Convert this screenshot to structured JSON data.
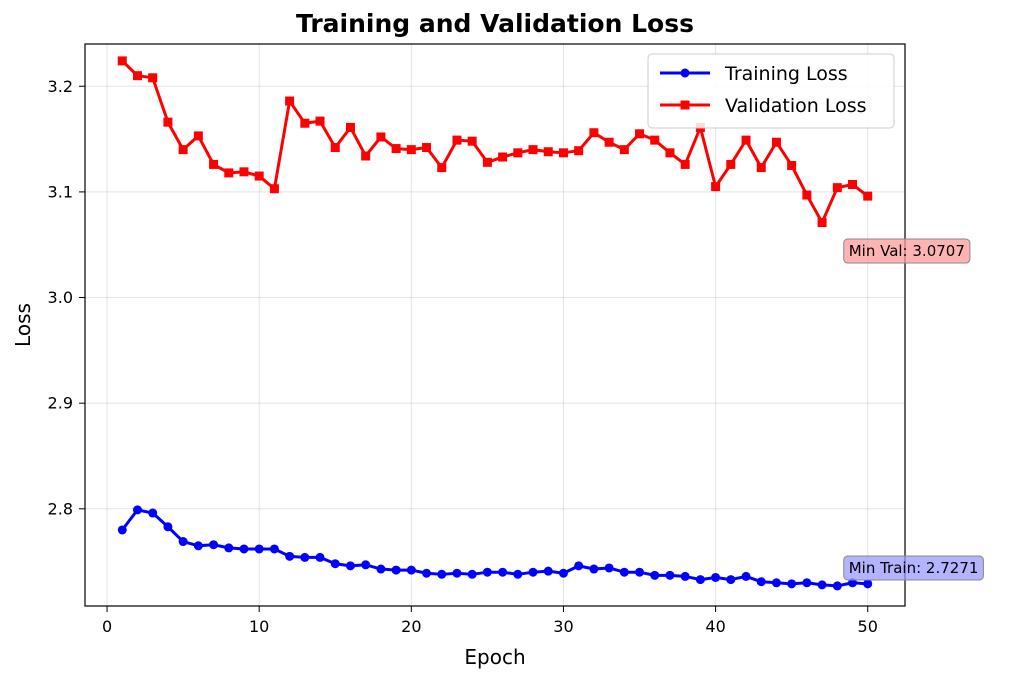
{
  "chart_data": {
    "type": "line",
    "title": "Training and Validation Loss",
    "xlabel": "Epoch",
    "ylabel": "Loss",
    "xlim": [
      -1.45,
      52.45
    ],
    "ylim": [
      2.708,
      3.24
    ],
    "xticks": [
      0,
      10,
      20,
      30,
      40,
      50
    ],
    "yticks": [
      2.8,
      2.9,
      3.0,
      3.1,
      3.2
    ],
    "ytick_labels": [
      "2.8",
      "2.9",
      "3.0",
      "3.1",
      "3.2"
    ],
    "grid": true,
    "legend_position": "top-right",
    "x": [
      1,
      2,
      3,
      4,
      5,
      6,
      7,
      8,
      9,
      10,
      11,
      12,
      13,
      14,
      15,
      16,
      17,
      18,
      19,
      20,
      21,
      22,
      23,
      24,
      25,
      26,
      27,
      28,
      29,
      30,
      31,
      32,
      33,
      34,
      35,
      36,
      37,
      38,
      39,
      40,
      41,
      42,
      43,
      44,
      45,
      46,
      47,
      48,
      49,
      50
    ],
    "series": [
      {
        "name": "Training Loss",
        "color": "#0000ff",
        "marker": "circle",
        "values": [
          2.78,
          2.799,
          2.796,
          2.783,
          2.769,
          2.765,
          2.766,
          2.763,
          2.762,
          2.762,
          2.762,
          2.755,
          2.754,
          2.754,
          2.748,
          2.746,
          2.747,
          2.743,
          2.742,
          2.742,
          2.739,
          2.738,
          2.739,
          2.738,
          2.74,
          2.74,
          2.738,
          2.74,
          2.741,
          2.739,
          2.746,
          2.743,
          2.744,
          2.74,
          2.74,
          2.737,
          2.737,
          2.736,
          2.733,
          2.735,
          2.733,
          2.736,
          2.731,
          2.73,
          2.729,
          2.73,
          2.728,
          2.727,
          2.73,
          2.729
        ]
      },
      {
        "name": "Validation Loss",
        "color": "#ff0000",
        "marker": "square",
        "values": [
          3.224,
          3.21,
          3.208,
          3.166,
          3.14,
          3.153,
          3.126,
          3.118,
          3.119,
          3.115,
          3.103,
          3.186,
          3.165,
          3.167,
          3.142,
          3.161,
          3.134,
          3.152,
          3.141,
          3.14,
          3.142,
          3.123,
          3.149,
          3.148,
          3.128,
          3.133,
          3.137,
          3.14,
          3.138,
          3.137,
          3.139,
          3.156,
          3.147,
          3.14,
          3.155,
          3.149,
          3.137,
          3.126,
          3.161,
          3.105,
          3.126,
          3.149,
          3.123,
          3.147,
          3.125,
          3.097,
          3.071,
          3.104,
          3.107,
          3.096
        ]
      }
    ],
    "annotations": [
      {
        "text": "Min Val: 3.0707",
        "x": 50,
        "y": 3.044,
        "color": "#ff9999"
      },
      {
        "text": "Min Train: 2.7271",
        "x": 50,
        "y": 2.744,
        "color": "#9999ff"
      }
    ]
  }
}
